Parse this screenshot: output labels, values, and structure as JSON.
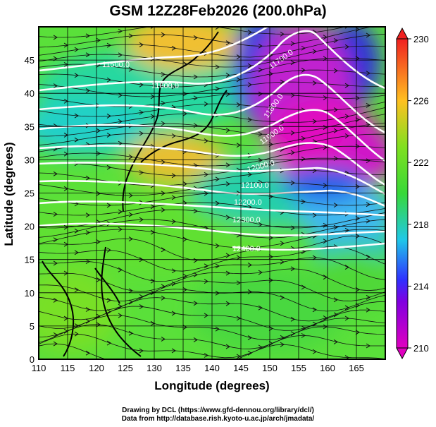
{
  "title": "GSM 12Z28Feb2026 (200.0hPa)",
  "xlabel": "Longitude (degrees)",
  "ylabel": "Latitude  (degrees)",
  "credits": {
    "line1": "Drawing by DCL (https://www.gfd-dennou.org/library/dcl/)",
    "line2": "Data from http://database.rish.kyoto-u.ac.jp/arch/jmadata/"
  },
  "chart_data": {
    "type": "heatmap",
    "x_range": [
      110,
      170
    ],
    "y_range": [
      0,
      50
    ],
    "x_ticks": [
      110,
      115,
      120,
      125,
      130,
      135,
      140,
      145,
      150,
      155,
      160,
      165
    ],
    "y_ticks": [
      0,
      5,
      10,
      15,
      20,
      25,
      30,
      35,
      40,
      45
    ],
    "grid": true,
    "colorbar": {
      "ticks": [
        210,
        214,
        218,
        222,
        226,
        230
      ],
      "range": [
        210,
        230
      ],
      "colors": [
        "#e000c0",
        "#3030ff",
        "#20c8e8",
        "#38d838",
        "#80e020",
        "#ffc020",
        "#f02020"
      ]
    },
    "contour_labels": [
      "11500.0",
      "11600.0",
      "11700.0",
      "11800.0",
      "11900.0",
      "12000.0",
      "12100.0",
      "12200.0",
      "12300.0",
      "12400.0"
    ]
  }
}
